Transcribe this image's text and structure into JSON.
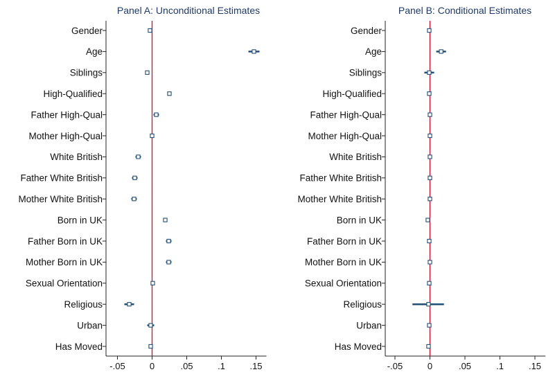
{
  "chart_data": [
    {
      "type": "coefficient-plot",
      "title": "Panel A: Unconditional Estimates",
      "categories": [
        "Gender",
        "Age",
        "Siblings",
        "High-Qualified",
        "Father High-Qual",
        "Mother High-Qual",
        "White British",
        "Father White British",
        "Mother White British",
        "Born in UK",
        "Father Born in UK",
        "Mother Born in UK",
        "Sexual Orientation",
        "Religious",
        "Urban",
        "Has Moved"
      ],
      "xticks": [
        -0.05,
        0,
        0.05,
        0.1,
        0.15
      ],
      "xtick_labels": [
        "-.05",
        "0",
        ".05",
        ".1",
        ".15"
      ],
      "xlim": [
        -0.065,
        0.165
      ],
      "reference_line": 0,
      "series": [
        {
          "estimates": [
            -0.003,
            0.147,
            -0.007,
            0.025,
            0.006,
            0.0,
            -0.02,
            -0.025,
            -0.026,
            0.019,
            0.024,
            0.024,
            0.001,
            -0.033,
            -0.002,
            -0.002
          ],
          "ci_low": [
            -0.005,
            0.139,
            -0.01,
            0.022,
            0.002,
            -0.002,
            -0.024,
            -0.029,
            -0.03,
            0.016,
            0.02,
            0.02,
            -0.001,
            -0.04,
            -0.007,
            -0.004
          ],
          "ci_high": [
            -0.001,
            0.155,
            -0.004,
            0.028,
            0.01,
            0.002,
            -0.016,
            -0.021,
            -0.022,
            0.022,
            0.028,
            0.028,
            0.003,
            -0.026,
            0.003,
            0.0
          ]
        }
      ]
    },
    {
      "type": "coefficient-plot",
      "title": "Panel B: Conditional Estimates",
      "categories": [
        "Gender",
        "Age",
        "Siblings",
        "High-Qualified",
        "Father High-Qual",
        "Mother High-Qual",
        "White British",
        "Father White British",
        "Mother White British",
        "Born in UK",
        "Father Born in UK",
        "Mother Born in UK",
        "Sexual Orientation",
        "Religious",
        "Urban",
        "Has Moved"
      ],
      "xticks": [
        -0.05,
        0,
        0.05,
        0.1,
        0.15
      ],
      "xtick_labels": [
        "-.05",
        "0",
        ".05",
        ".1",
        ".15"
      ],
      "xlim": [
        -0.065,
        0.165
      ],
      "reference_line": 0,
      "series": [
        {
          "estimates": [
            -0.001,
            0.016,
            -0.001,
            -0.001,
            0.0,
            0.0,
            0.0,
            0.0,
            0.0,
            -0.003,
            -0.001,
            0.0,
            -0.001,
            -0.002,
            -0.001,
            -0.002
          ],
          "ci_low": [
            -0.003,
            0.009,
            -0.008,
            -0.003,
            -0.002,
            -0.002,
            -0.002,
            -0.002,
            -0.002,
            -0.005,
            -0.003,
            -0.002,
            -0.003,
            -0.025,
            -0.003,
            -0.004
          ],
          "ci_high": [
            0.001,
            0.023,
            0.006,
            0.001,
            0.002,
            0.002,
            0.002,
            0.002,
            0.002,
            -0.001,
            0.001,
            0.002,
            0.001,
            0.02,
            0.001,
            0.0
          ]
        }
      ]
    }
  ]
}
